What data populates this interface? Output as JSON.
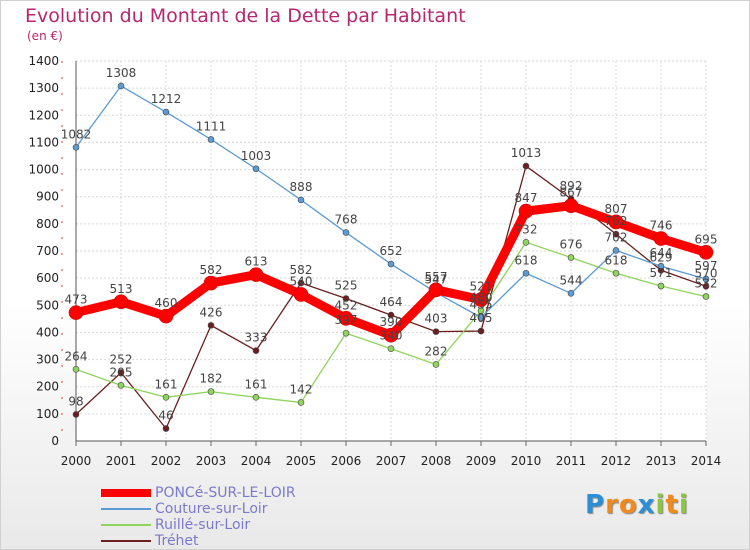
{
  "title": "Evolution du Montant de la Dette par Habitant",
  "unit": "(en €)",
  "brand": "Proxiti",
  "chart_data": {
    "type": "line",
    "title": "Evolution du Montant de la Dette par Habitant",
    "ylabel": "(en €)",
    "xlabel": "",
    "x": [
      "2000",
      "2001",
      "2002",
      "2003",
      "2004",
      "2005",
      "2006",
      "2007",
      "2008",
      "2009",
      "2010",
      "2011",
      "2012",
      "2013",
      "2014"
    ],
    "ylim": [
      0,
      1400
    ],
    "yticks": [
      0,
      100,
      200,
      300,
      400,
      500,
      600,
      700,
      800,
      900,
      1000,
      1100,
      1200,
      1300,
      1400
    ],
    "grid": true,
    "legend_position": "bottom-left",
    "series": [
      {
        "name": "PONCé-SUR-LE-LOIR",
        "color": "#ff0000",
        "values": [
          473,
          513,
          460,
          582,
          613,
          540,
          452,
          390,
          557,
          521,
          847,
          867,
          807,
          746,
          695
        ],
        "labels": [
          "473",
          "513",
          "460",
          "582",
          "613",
          "540",
          "452",
          "390",
          "557",
          "521",
          "847",
          "867",
          "807",
          "746",
          "695"
        ]
      },
      {
        "name": "Couture-sur-Loir",
        "color": "#5b9bd5",
        "values": [
          1082,
          1308,
          1212,
          1111,
          1003,
          888,
          768,
          652,
          547,
          455,
          618,
          544,
          702,
          644,
          597
        ],
        "labels": [
          "1082",
          "1308",
          "1212",
          "1111",
          "1003",
          "888",
          "768",
          "652",
          "547",
          "455",
          "618",
          "544",
          "702",
          "644",
          "597"
        ]
      },
      {
        "name": "Ruillé-sur-Loir",
        "color": "#8fd45c",
        "values": [
          264,
          205,
          161,
          182,
          161,
          142,
          397,
          340,
          282,
          480,
          732,
          676,
          618,
          571,
          532
        ],
        "labels": [
          "264",
          "205",
          "161",
          "182",
          "161",
          "142",
          "397",
          "340",
          "282",
          "480",
          "732",
          "676",
          "618",
          "571",
          "532"
        ]
      },
      {
        "name": "Tréhet",
        "color": "#6b1f1f",
        "values": [
          98,
          252,
          46,
          426,
          333,
          582,
          525,
          464,
          403,
          405,
          1013,
          892,
          762,
          629,
          570
        ],
        "labels": [
          "98",
          "252",
          "46",
          "426",
          "333",
          "582",
          "525",
          "464",
          "403",
          "405",
          "1013",
          "892",
          "762",
          "629",
          "570"
        ]
      }
    ]
  }
}
